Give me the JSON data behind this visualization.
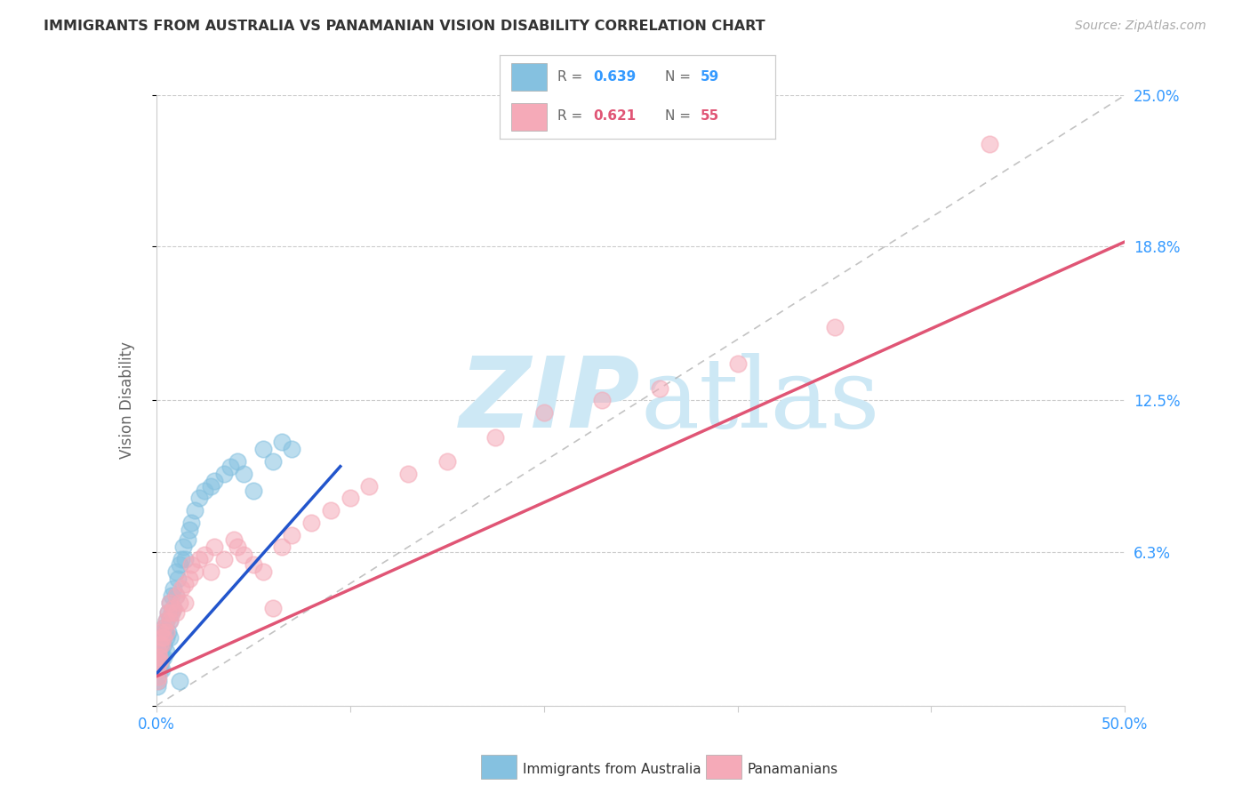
{
  "title": "IMMIGRANTS FROM AUSTRALIA VS PANAMANIAN VISION DISABILITY CORRELATION CHART",
  "source": "Source: ZipAtlas.com",
  "ylabel": "Vision Disability",
  "xlim": [
    0.0,
    0.5
  ],
  "ylim": [
    0.0,
    0.25
  ],
  "xtick_positions": [
    0.0,
    0.1,
    0.2,
    0.3,
    0.4,
    0.5
  ],
  "xtick_labels": [
    "0.0%",
    "",
    "",
    "",
    "",
    "50.0%"
  ],
  "ytick_positions_right": [
    0.063,
    0.125,
    0.188,
    0.25
  ],
  "ytick_labels_right": [
    "6.3%",
    "12.5%",
    "18.8%",
    "25.0%"
  ],
  "legend_r1": "0.639",
  "legend_n1": "59",
  "legend_r2": "0.621",
  "legend_n2": "55",
  "blue_color": "#85c1e0",
  "pink_color": "#f5aab8",
  "blue_line_color": "#2255cc",
  "pink_line_color": "#e05575",
  "watermark": "ZIPatlas",
  "watermark_color": "#cde8f5",
  "grid_color": "#cccccc",
  "australia_x": [
    0.0005,
    0.0008,
    0.001,
    0.001,
    0.0012,
    0.0015,
    0.0015,
    0.0018,
    0.002,
    0.002,
    0.002,
    0.0022,
    0.0025,
    0.003,
    0.003,
    0.003,
    0.003,
    0.0035,
    0.004,
    0.004,
    0.004,
    0.0045,
    0.005,
    0.005,
    0.005,
    0.006,
    0.006,
    0.007,
    0.007,
    0.007,
    0.008,
    0.008,
    0.009,
    0.009,
    0.01,
    0.01,
    0.011,
    0.012,
    0.013,
    0.014,
    0.015,
    0.016,
    0.017,
    0.018,
    0.02,
    0.022,
    0.025,
    0.028,
    0.03,
    0.035,
    0.038,
    0.042,
    0.045,
    0.05,
    0.055,
    0.06,
    0.065,
    0.07,
    0.012
  ],
  "australia_y": [
    0.008,
    0.012,
    0.015,
    0.02,
    0.01,
    0.018,
    0.025,
    0.022,
    0.015,
    0.02,
    0.028,
    0.018,
    0.022,
    0.02,
    0.025,
    0.03,
    0.015,
    0.028,
    0.025,
    0.032,
    0.02,
    0.03,
    0.028,
    0.035,
    0.022,
    0.03,
    0.038,
    0.035,
    0.042,
    0.028,
    0.038,
    0.045,
    0.04,
    0.048,
    0.045,
    0.055,
    0.052,
    0.058,
    0.06,
    0.065,
    0.06,
    0.068,
    0.072,
    0.075,
    0.08,
    0.085,
    0.088,
    0.09,
    0.092,
    0.095,
    0.098,
    0.1,
    0.095,
    0.088,
    0.105,
    0.1,
    0.108,
    0.105,
    0.01
  ],
  "panama_x": [
    0.0005,
    0.0008,
    0.001,
    0.001,
    0.0012,
    0.0015,
    0.002,
    0.002,
    0.0025,
    0.003,
    0.003,
    0.004,
    0.004,
    0.005,
    0.005,
    0.006,
    0.007,
    0.007,
    0.008,
    0.009,
    0.01,
    0.01,
    0.012,
    0.013,
    0.015,
    0.015,
    0.017,
    0.018,
    0.02,
    0.022,
    0.025,
    0.028,
    0.03,
    0.035,
    0.04,
    0.042,
    0.045,
    0.05,
    0.055,
    0.06,
    0.065,
    0.07,
    0.08,
    0.09,
    0.1,
    0.11,
    0.13,
    0.15,
    0.175,
    0.2,
    0.23,
    0.26,
    0.3,
    0.35,
    0.43
  ],
  "panama_y": [
    0.01,
    0.015,
    0.012,
    0.018,
    0.022,
    0.02,
    0.018,
    0.025,
    0.03,
    0.028,
    0.025,
    0.032,
    0.028,
    0.035,
    0.03,
    0.038,
    0.035,
    0.042,
    0.038,
    0.04,
    0.038,
    0.045,
    0.042,
    0.048,
    0.05,
    0.042,
    0.052,
    0.058,
    0.055,
    0.06,
    0.062,
    0.055,
    0.065,
    0.06,
    0.068,
    0.065,
    0.062,
    0.058,
    0.055,
    0.04,
    0.065,
    0.07,
    0.075,
    0.08,
    0.085,
    0.09,
    0.095,
    0.1,
    0.11,
    0.12,
    0.125,
    0.13,
    0.14,
    0.155,
    0.23
  ],
  "blue_line_x0": 0.0,
  "blue_line_x1": 0.095,
  "blue_line_y0": 0.013,
  "blue_line_y1": 0.098,
  "pink_line_x0": 0.0,
  "pink_line_x1": 0.5,
  "pink_line_y0": 0.012,
  "pink_line_y1": 0.19
}
